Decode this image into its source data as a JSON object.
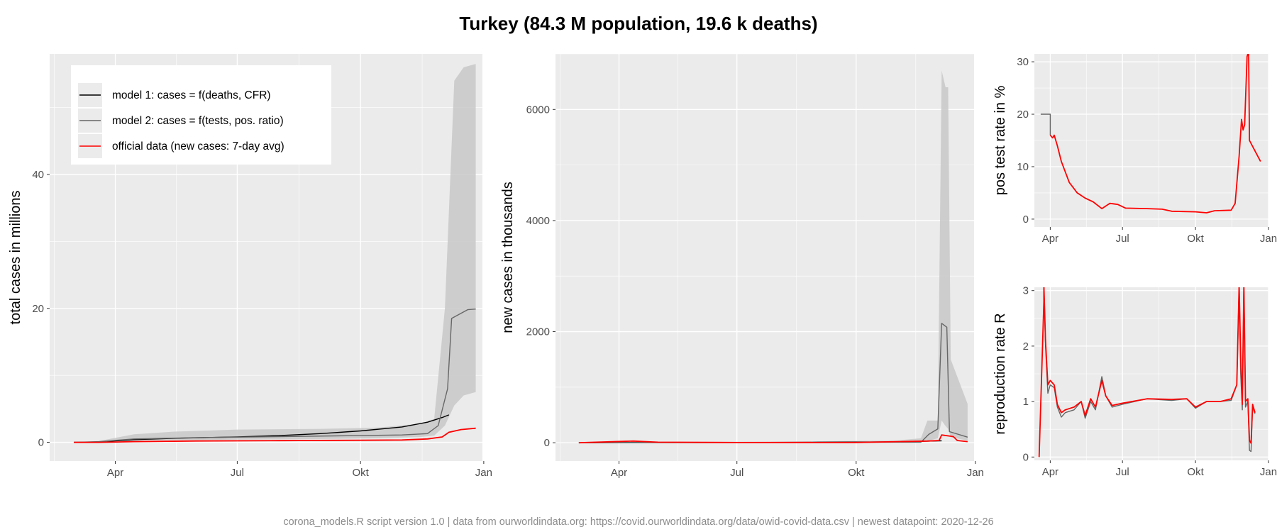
{
  "title": "Turkey (84.3 M population, 19.6 k deaths)",
  "caption": "corona_models.R script version 1.0 | data from ourworldindata.org: https://covid.ourworldindata.org/data/owid-covid-data.csv | newest datapoint: 2020-12-26",
  "colors": {
    "panel_bg": "#ebebeb",
    "grid": "#ffffff",
    "model1": "#000000",
    "model2": "#666666",
    "official": "#ff0000",
    "band": "#c8c8c8"
  },
  "legend": {
    "items": [
      {
        "label": "model 1: cases = f(deaths, CFR)",
        "color": "#000000"
      },
      {
        "label": "model 2: cases = f(tests, pos. ratio)",
        "color": "#666666"
      },
      {
        "label": "official data (new cases: 7-day avg)",
        "color": "#ff0000"
      }
    ]
  },
  "chart_data": [
    {
      "id": "total",
      "type": "line",
      "ylabel": "total cases in millions",
      "xlim": [
        "2020-02-12",
        "2020-12-31"
      ],
      "ylim": [
        -2.8,
        58
      ],
      "x_ticks": [
        {
          "label": "Apr",
          "date": "2020-04-01"
        },
        {
          "label": "Jul",
          "date": "2020-07-01"
        },
        {
          "label": "Okt",
          "date": "2020-10-01"
        },
        {
          "label": "Jan",
          "date": "2021-01-01"
        }
      ],
      "y_ticks": [
        0,
        20,
        40
      ],
      "band": [
        {
          "x": "2020-03-01",
          "lo": 0,
          "hi": 0
        },
        {
          "x": "2020-03-20",
          "lo": 0,
          "hi": 0.2
        },
        {
          "x": "2020-04-15",
          "lo": 0.2,
          "hi": 1.2
        },
        {
          "x": "2020-05-15",
          "lo": 0.3,
          "hi": 1.6
        },
        {
          "x": "2020-07-01",
          "lo": 0.4,
          "hi": 1.9
        },
        {
          "x": "2020-09-01",
          "lo": 0.5,
          "hi": 2.0
        },
        {
          "x": "2020-10-15",
          "lo": 0.6,
          "hi": 2.2
        },
        {
          "x": "2020-11-15",
          "lo": 0.8,
          "hi": 2.8
        },
        {
          "x": "2020-11-25",
          "lo": 1.0,
          "hi": 3.5
        },
        {
          "x": "2020-12-03",
          "lo": 2.5,
          "hi": 20
        },
        {
          "x": "2020-12-10",
          "lo": 5.5,
          "hi": 54
        },
        {
          "x": "2020-12-17",
          "lo": 7,
          "hi": 56
        },
        {
          "x": "2020-12-26",
          "lo": 7.5,
          "hi": 56.5
        }
      ],
      "series": [
        {
          "key": "model1",
          "values": [
            [
              "2020-03-01",
              0
            ],
            [
              "2020-03-20",
              0.05
            ],
            [
              "2020-04-15",
              0.4
            ],
            [
              "2020-05-15",
              0.6
            ],
            [
              "2020-07-01",
              0.8
            ],
            [
              "2020-08-01",
              1.0
            ],
            [
              "2020-09-01",
              1.3
            ],
            [
              "2020-10-01",
              1.7
            ],
            [
              "2020-11-01",
              2.3
            ],
            [
              "2020-11-20",
              3.0
            ],
            [
              "2020-12-01",
              3.7
            ],
            [
              "2020-12-06",
              4.1
            ]
          ]
        },
        {
          "key": "model2",
          "values": [
            [
              "2020-03-01",
              0
            ],
            [
              "2020-03-20",
              0.1
            ],
            [
              "2020-04-15",
              0.5
            ],
            [
              "2020-06-01",
              0.7
            ],
            [
              "2020-08-01",
              0.85
            ],
            [
              "2020-10-01",
              1.0
            ],
            [
              "2020-11-01",
              1.1
            ],
            [
              "2020-11-20",
              1.3
            ],
            [
              "2020-11-28",
              2.5
            ],
            [
              "2020-12-05",
              8
            ],
            [
              "2020-12-08",
              18.5
            ],
            [
              "2020-12-20",
              19.8
            ],
            [
              "2020-12-26",
              19.9
            ]
          ]
        },
        {
          "key": "official",
          "values": [
            [
              "2020-03-01",
              0
            ],
            [
              "2020-03-20",
              0
            ],
            [
              "2020-04-15",
              0.1
            ],
            [
              "2020-06-01",
              0.2
            ],
            [
              "2020-08-01",
              0.25
            ],
            [
              "2020-10-01",
              0.3
            ],
            [
              "2020-11-01",
              0.35
            ],
            [
              "2020-11-20",
              0.5
            ],
            [
              "2020-12-01",
              0.8
            ],
            [
              "2020-12-06",
              1.5
            ],
            [
              "2020-12-15",
              1.9
            ],
            [
              "2020-12-26",
              2.1
            ]
          ]
        }
      ]
    },
    {
      "id": "new",
      "type": "line",
      "ylabel": "new cases in thousands",
      "xlim": [
        "2020-02-12",
        "2020-12-31"
      ],
      "ylim": [
        -330,
        7000
      ],
      "x_ticks": [
        {
          "label": "Apr",
          "date": "2020-04-01"
        },
        {
          "label": "Jul",
          "date": "2020-07-01"
        },
        {
          "label": "Okt",
          "date": "2020-10-01"
        },
        {
          "label": "Jan",
          "date": "2021-01-01"
        }
      ],
      "y_ticks": [
        0,
        2000,
        4000,
        6000
      ],
      "band": [
        {
          "x": "2020-03-01",
          "lo": 0,
          "hi": 0
        },
        {
          "x": "2020-04-01",
          "lo": 0,
          "hi": 30
        },
        {
          "x": "2020-05-01",
          "lo": 0,
          "hi": 15
        },
        {
          "x": "2020-08-01",
          "lo": 0,
          "hi": 20
        },
        {
          "x": "2020-11-01",
          "lo": 5,
          "hi": 40
        },
        {
          "x": "2020-11-20",
          "lo": 10,
          "hi": 80
        },
        {
          "x": "2020-11-25",
          "lo": 30,
          "hi": 400
        },
        {
          "x": "2020-12-03",
          "lo": 80,
          "hi": 400
        },
        {
          "x": "2020-12-06",
          "lo": 400,
          "hi": 6700
        },
        {
          "x": "2020-12-09",
          "lo": 300,
          "hi": 6400
        },
        {
          "x": "2020-12-11",
          "lo": 250,
          "hi": 6400
        },
        {
          "x": "2020-12-13",
          "lo": 100,
          "hi": 1500
        },
        {
          "x": "2020-12-26",
          "lo": 40,
          "hi": 700
        }
      ],
      "series": [
        {
          "key": "model1",
          "values": [
            [
              "2020-03-01",
              0
            ],
            [
              "2020-04-10",
              5
            ],
            [
              "2020-06-01",
              3
            ],
            [
              "2020-09-01",
              8
            ],
            [
              "2020-11-01",
              15
            ],
            [
              "2020-12-06",
              35
            ]
          ]
        },
        {
          "key": "model2",
          "values": [
            [
              "2020-03-01",
              0
            ],
            [
              "2020-05-01",
              3
            ],
            [
              "2020-09-01",
              4
            ],
            [
              "2020-11-20",
              10
            ],
            [
              "2020-11-26",
              150
            ],
            [
              "2020-12-03",
              250
            ],
            [
              "2020-12-06",
              2150
            ],
            [
              "2020-12-10",
              2080
            ],
            [
              "2020-12-12",
              200
            ],
            [
              "2020-12-26",
              100
            ]
          ]
        },
        {
          "key": "official",
          "values": [
            [
              "2020-03-01",
              0
            ],
            [
              "2020-04-05",
              25
            ],
            [
              "2020-04-12",
              30
            ],
            [
              "2020-05-01",
              10
            ],
            [
              "2020-07-01",
              3
            ],
            [
              "2020-10-01",
              5
            ],
            [
              "2020-11-25",
              30
            ],
            [
              "2020-12-04",
              40
            ],
            [
              "2020-12-06",
              140
            ],
            [
              "2020-12-15",
              110
            ],
            [
              "2020-12-18",
              40
            ],
            [
              "2020-12-26",
              20
            ]
          ]
        }
      ]
    },
    {
      "id": "pos",
      "type": "line",
      "ylabel": "pos test rate in %",
      "xlim": [
        "2020-03-12",
        "2021-01-01"
      ],
      "ylim": [
        -1.5,
        31.5
      ],
      "x_ticks": [
        {
          "label": "Apr",
          "date": "2020-04-01"
        },
        {
          "label": "Jul",
          "date": "2020-07-01"
        },
        {
          "label": "Okt",
          "date": "2020-10-01"
        },
        {
          "label": "Jan",
          "date": "2021-01-01"
        }
      ],
      "y_ticks": [
        0,
        10,
        20,
        30
      ],
      "series": [
        {
          "key": "model2",
          "values": [
            [
              "2020-03-20",
              20
            ],
            [
              "2020-04-01",
              20
            ],
            [
              "2020-04-01",
              16
            ]
          ]
        },
        {
          "key": "official",
          "values": [
            [
              "2020-04-01",
              16
            ],
            [
              "2020-04-04",
              15.5
            ],
            [
              "2020-04-06",
              16
            ],
            [
              "2020-04-10",
              14
            ],
            [
              "2020-04-15",
              11
            ],
            [
              "2020-04-25",
              7
            ],
            [
              "2020-05-05",
              5
            ],
            [
              "2020-05-15",
              4
            ],
            [
              "2020-05-25",
              3.3
            ],
            [
              "2020-06-05",
              2
            ],
            [
              "2020-06-15",
              3
            ],
            [
              "2020-06-25",
              2.8
            ],
            [
              "2020-07-05",
              2.1
            ],
            [
              "2020-08-01",
              2
            ],
            [
              "2020-08-20",
              1.9
            ],
            [
              "2020-09-01",
              1.5
            ],
            [
              "2020-10-01",
              1.4
            ],
            [
              "2020-10-15",
              1.2
            ],
            [
              "2020-10-25",
              1.6
            ],
            [
              "2020-11-15",
              1.7
            ],
            [
              "2020-11-20",
              3
            ],
            [
              "2020-11-25",
              12
            ],
            [
              "2020-11-28",
              19
            ],
            [
              "2020-11-30",
              17
            ],
            [
              "2020-12-02",
              18
            ],
            [
              "2020-12-05",
              31
            ],
            [
              "2020-12-07",
              32
            ],
            [
              "2020-12-08",
              15
            ],
            [
              "2020-12-15",
              13
            ],
            [
              "2020-12-22",
              11
            ]
          ]
        }
      ]
    },
    {
      "id": "repro",
      "type": "line",
      "ylabel": "reproduction rate R",
      "xlim": [
        "2020-03-12",
        "2021-01-01"
      ],
      "ylim": [
        -0.06,
        3.06
      ],
      "x_ticks": [
        {
          "label": "Apr",
          "date": "2020-04-01"
        },
        {
          "label": "Jul",
          "date": "2020-07-01"
        },
        {
          "label": "Okt",
          "date": "2020-10-01"
        },
        {
          "label": "Jan",
          "date": "2021-01-01"
        }
      ],
      "y_ticks": [
        0,
        1,
        2,
        3
      ],
      "series": [
        {
          "key": "model2",
          "values": [
            [
              "2020-03-24",
              3.1
            ],
            [
              "2020-03-26",
              2.0
            ],
            [
              "2020-03-29",
              1.15
            ],
            [
              "2020-04-01",
              1.3
            ],
            [
              "2020-04-06",
              1.25
            ],
            [
              "2020-04-10",
              0.9
            ],
            [
              "2020-04-15",
              0.72
            ],
            [
              "2020-04-20",
              0.8
            ],
            [
              "2020-05-01",
              0.85
            ],
            [
              "2020-05-10",
              1.0
            ],
            [
              "2020-05-15",
              0.7
            ],
            [
              "2020-05-22",
              1.0
            ],
            [
              "2020-05-28",
              0.85
            ],
            [
              "2020-06-05",
              1.45
            ],
            [
              "2020-06-10",
              1.1
            ],
            [
              "2020-06-18",
              0.9
            ],
            [
              "2020-07-01",
              0.95
            ],
            [
              "2020-08-01",
              1.05
            ],
            [
              "2020-09-01",
              1.02
            ],
            [
              "2020-09-20",
              1.05
            ],
            [
              "2020-10-01",
              0.88
            ],
            [
              "2020-10-15",
              1.0
            ],
            [
              "2020-11-01",
              1.0
            ],
            [
              "2020-11-15",
              1.02
            ],
            [
              "2020-11-22",
              1.3
            ],
            [
              "2020-11-25",
              3.1
            ],
            [
              "2020-11-27",
              1.5
            ],
            [
              "2020-11-29",
              0.85
            ],
            [
              "2020-12-01",
              3.1
            ],
            [
              "2020-12-03",
              0.9
            ],
            [
              "2020-12-06",
              1.0
            ],
            [
              "2020-12-08",
              0.12
            ],
            [
              "2020-12-10",
              0.1
            ],
            [
              "2020-12-12",
              0.9
            ],
            [
              "2020-12-15",
              0.78
            ]
          ]
        },
        {
          "key": "official",
          "values": [
            [
              "2020-03-18",
              0
            ],
            [
              "2020-03-24",
              2.8
            ],
            [
              "2020-03-24",
              3.1
            ],
            [
              "2020-03-26",
              2.1
            ],
            [
              "2020-03-29",
              1.3
            ],
            [
              "2020-04-01",
              1.38
            ],
            [
              "2020-04-06",
              1.3
            ],
            [
              "2020-04-10",
              0.95
            ],
            [
              "2020-04-15",
              0.8
            ],
            [
              "2020-04-20",
              0.85
            ],
            [
              "2020-05-01",
              0.9
            ],
            [
              "2020-05-10",
              1.0
            ],
            [
              "2020-05-15",
              0.75
            ],
            [
              "2020-05-22",
              1.05
            ],
            [
              "2020-05-28",
              0.9
            ],
            [
              "2020-06-05",
              1.38
            ],
            [
              "2020-06-10",
              1.1
            ],
            [
              "2020-06-18",
              0.93
            ],
            [
              "2020-07-01",
              0.97
            ],
            [
              "2020-08-01",
              1.05
            ],
            [
              "2020-09-01",
              1.04
            ],
            [
              "2020-09-20",
              1.05
            ],
            [
              "2020-10-01",
              0.9
            ],
            [
              "2020-10-15",
              1.0
            ],
            [
              "2020-11-01",
              1.0
            ],
            [
              "2020-11-15",
              1.05
            ],
            [
              "2020-11-22",
              1.3
            ],
            [
              "2020-11-25",
              3.1
            ],
            [
              "2020-11-27",
              1.8
            ],
            [
              "2020-11-29",
              0.95
            ],
            [
              "2020-12-01",
              3.1
            ],
            [
              "2020-12-03",
              1.0
            ],
            [
              "2020-12-06",
              1.05
            ],
            [
              "2020-12-08",
              0.3
            ],
            [
              "2020-12-10",
              0.25
            ],
            [
              "2020-12-12",
              0.95
            ],
            [
              "2020-12-15",
              0.8
            ]
          ]
        }
      ]
    }
  ]
}
